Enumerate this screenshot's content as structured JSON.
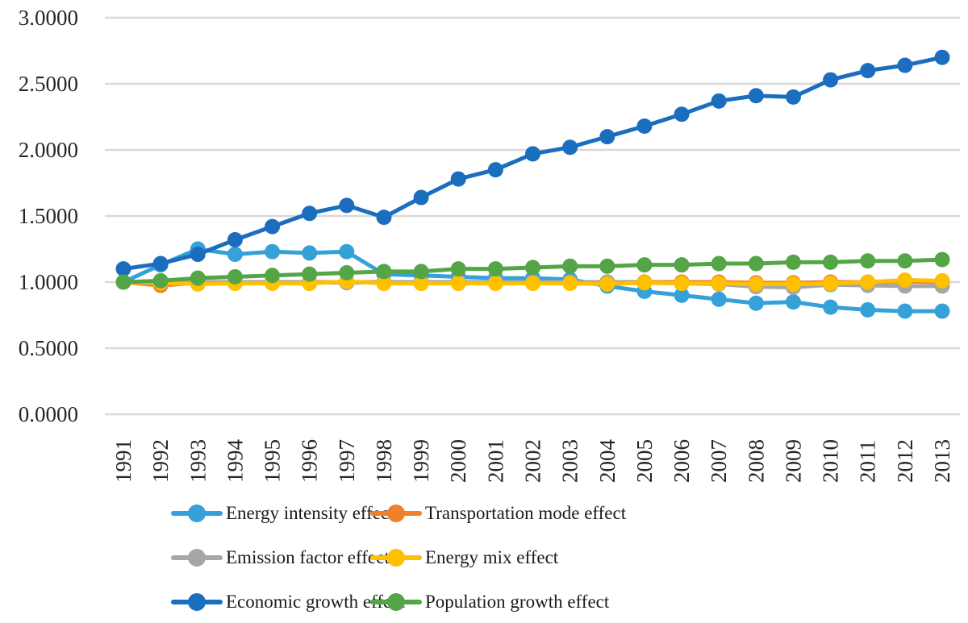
{
  "styles": {
    "background": "#FFFFFF",
    "gridline_color": "#D9D9D9",
    "axis_text_color": "#262626",
    "legend_text_color": "#1A1A1A"
  },
  "chart_data": {
    "type": "line",
    "title": "",
    "xlabel": "",
    "ylabel": "",
    "x": [
      "1991",
      "1992",
      "1993",
      "1994",
      "1995",
      "1996",
      "1997",
      "1998",
      "1999",
      "2000",
      "2001",
      "2002",
      "2003",
      "2004",
      "2005",
      "2006",
      "2007",
      "2008",
      "2009",
      "2010",
      "2011",
      "2012",
      "2013"
    ],
    "ylim": [
      0.0,
      3.0
    ],
    "ytick_step": 0.5,
    "ytick_labels": [
      "3.0000",
      "2.5000",
      "2.0000",
      "1.5000",
      "1.0000",
      "0.5000",
      "0.0000"
    ],
    "grid": "horizontal-only",
    "legend_position": "bottom",
    "marker": "circle",
    "series": [
      {
        "name": "Energy intensity effect",
        "color": "#35A1D9",
        "values": [
          1.0,
          1.13,
          1.25,
          1.21,
          1.23,
          1.22,
          1.23,
          1.06,
          1.05,
          1.04,
          1.03,
          1.03,
          1.02,
          0.97,
          0.93,
          0.9,
          0.87,
          0.84,
          0.85,
          0.81,
          0.79,
          0.78,
          0.78
        ]
      },
      {
        "name": "Transportation mode effect",
        "color": "#F0802B",
        "values": [
          1.0,
          0.975,
          0.995,
          1.0,
          1.0,
          1.0,
          1.0,
          1.0,
          1.0,
          1.0,
          1.0,
          1.0,
          1.0,
          1.0,
          1.0,
          1.0,
          1.0,
          0.995,
          0.995,
          1.0,
          1.0,
          1.005,
          1.0
        ]
      },
      {
        "name": "Emission factor effect",
        "color": "#A6A6A6",
        "values": [
          1.0,
          1.0,
          1.0,
          1.0,
          1.0,
          1.0,
          0.995,
          1.0,
          1.0,
          1.0,
          1.0,
          1.0,
          1.0,
          1.0,
          0.995,
          0.99,
          0.985,
          0.965,
          0.96,
          0.98,
          0.975,
          0.97,
          0.97
        ]
      },
      {
        "name": "Energy mix effect",
        "color": "#FFC000",
        "values": [
          1.0,
          0.995,
          0.985,
          0.99,
          0.99,
          0.99,
          1.005,
          0.99,
          0.99,
          0.99,
          0.99,
          0.99,
          0.99,
          0.985,
          0.995,
          0.99,
          0.99,
          0.985,
          0.985,
          0.99,
          1.0,
          1.015,
          1.01
        ]
      },
      {
        "name": "Economic growth effect",
        "color": "#1B6EBE",
        "values": [
          1.1,
          1.14,
          1.21,
          1.32,
          1.42,
          1.52,
          1.58,
          1.49,
          1.64,
          1.78,
          1.85,
          1.97,
          2.02,
          2.1,
          2.18,
          2.27,
          2.37,
          2.41,
          2.4,
          2.53,
          2.6,
          2.64,
          2.7
        ]
      },
      {
        "name": "Population growth effect",
        "color": "#54A546",
        "values": [
          1.0,
          1.01,
          1.03,
          1.04,
          1.05,
          1.06,
          1.07,
          1.08,
          1.08,
          1.1,
          1.1,
          1.11,
          1.12,
          1.12,
          1.13,
          1.13,
          1.14,
          1.14,
          1.15,
          1.15,
          1.16,
          1.16,
          1.17
        ]
      }
    ]
  }
}
